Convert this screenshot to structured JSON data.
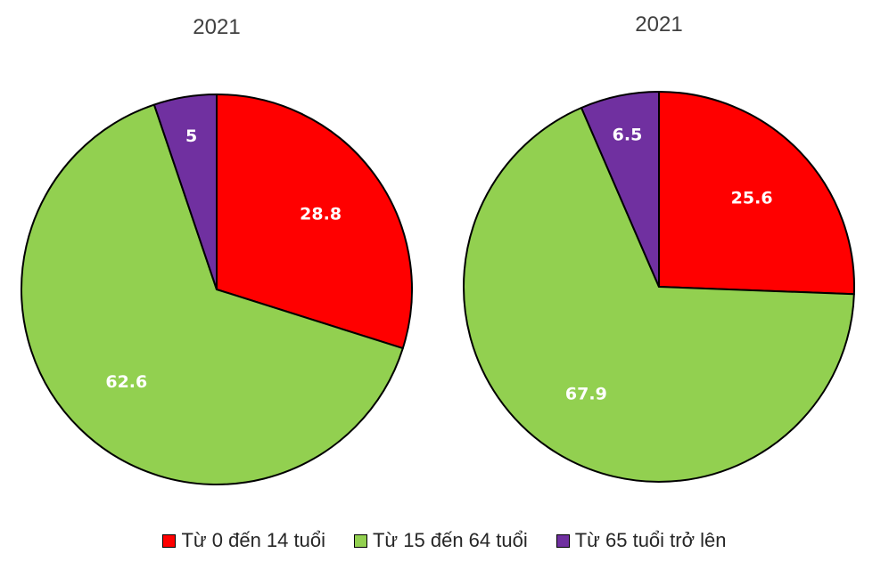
{
  "chart_data": [
    {
      "type": "pie",
      "title": "2021",
      "categories": [
        "Từ 0 đến 14 tuổi",
        "Từ 15 đến 64 tuổi",
        "Từ 65 tuổi trở lên"
      ],
      "values": [
        28.8,
        62.6,
        5
      ],
      "labels": [
        "28.8",
        "62.6",
        "5"
      ],
      "colors": [
        "#ff0000",
        "#92d050",
        "#7030a0"
      ]
    },
    {
      "type": "pie",
      "title": "2021",
      "categories": [
        "Từ 0 đến 14 tuổi",
        "Từ 15 đến 64 tuổi",
        "Từ 65 tuổi trở lên"
      ],
      "values": [
        25.6,
        67.9,
        6.5
      ],
      "labels": [
        "25.6",
        "67.9",
        "6.5"
      ],
      "colors": [
        "#ff0000",
        "#92d050",
        "#7030a0"
      ]
    }
  ],
  "legend": {
    "items": [
      {
        "label": "Từ 0 đến 14 tuổi",
        "color": "#ff0000"
      },
      {
        "label": "Từ 15 đến 64 tuổi",
        "color": "#92d050"
      },
      {
        "label": "Từ 65 tuổi trở lên",
        "color": "#7030a0"
      }
    ],
    "placement": "bottom"
  }
}
